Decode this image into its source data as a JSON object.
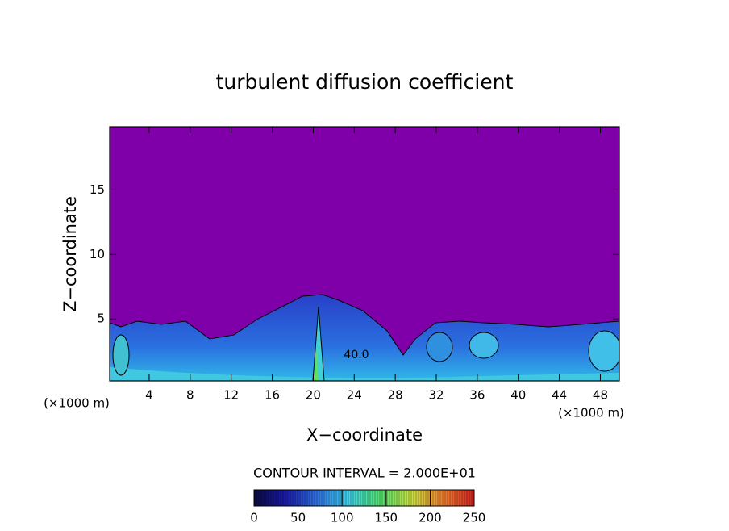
{
  "chart_data": {
    "type": "contour",
    "title": "turbulent diffusion coefficient",
    "x_label": "X−coordinate",
    "y_label": "Z−coordinate",
    "unit_label": "(×1000 m)",
    "xlim": [
      0.15,
      49.85
    ],
    "ylim": [
      0.2,
      19.9
    ],
    "xticks": [
      4,
      8,
      12,
      16,
      20,
      24,
      28,
      32,
      36,
      40,
      44,
      48
    ],
    "yticks": [
      5,
      10,
      15
    ],
    "contour_labels": [
      {
        "value": 40,
        "label": "40.0"
      }
    ],
    "contour_interval_label": "CONTOUR INTERVAL = 2.000E+01",
    "clim": [
      0,
      250
    ],
    "cticks": [
      0,
      50,
      100,
      150,
      200,
      250
    ],
    "colormap": [
      "#0a0a40",
      "#1a1aa8",
      "#2f6fe0",
      "#3fd0e8",
      "#50e070",
      "#c8e040",
      "#f08030",
      "#d02020"
    ],
    "background_color": "#7f00a8"
  }
}
